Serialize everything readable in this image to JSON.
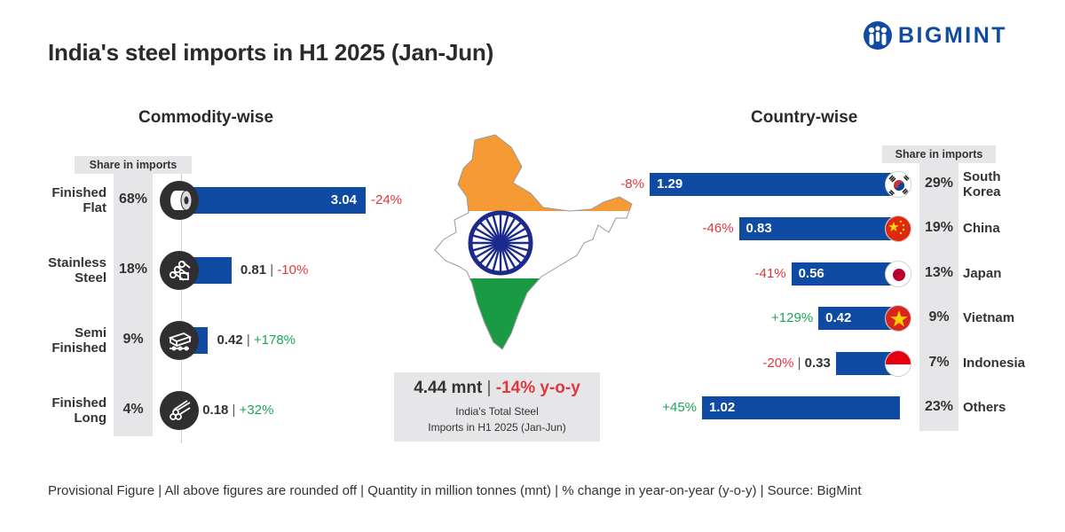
{
  "title": "India's steel imports in H1 2025 (Jan-Jun)",
  "brand": "BIGMINT",
  "colors": {
    "bar": "#0f4aa3",
    "negative": "#e0383e",
    "positive": "#1fa35a",
    "panel": "#e6e6e8"
  },
  "commodity": {
    "heading": "Commodity-wise",
    "share_header": "Share in imports",
    "items": [
      {
        "label_line1": "Finished",
        "label_line2": "Flat",
        "share": "68%",
        "value": "3.04",
        "change": "-24%",
        "icon": "steel-coil-icon"
      },
      {
        "label_line1": "Stainless",
        "label_line2": "Steel",
        "share": "18%",
        "value": "0.81",
        "change": "-10%",
        "icon": "stainless-pipes-icon"
      },
      {
        "label_line1": "Semi",
        "label_line2": "Finished",
        "share": "9%",
        "value": "0.42",
        "change": "+178%",
        "icon": "semi-finished-bar-icon"
      },
      {
        "label_line1": "Finished",
        "label_line2": "Long",
        "share": "4%",
        "value": "0.18",
        "change": "+32%",
        "icon": "long-rods-icon"
      }
    ]
  },
  "country": {
    "heading": "Country-wise",
    "share_header": "Share in imports",
    "items": [
      {
        "label_line1": "South",
        "label_line2": "Korea",
        "share": "29%",
        "value": "1.29",
        "change": "-8%",
        "icon": "south-korea-flag-icon"
      },
      {
        "label_line1": "China",
        "label_line2": "",
        "share": "19%",
        "value": "0.83",
        "change": "-46%",
        "icon": "china-flag-icon"
      },
      {
        "label_line1": "Japan",
        "label_line2": "",
        "share": "13%",
        "value": "0.56",
        "change": "-41%",
        "icon": "japan-flag-icon"
      },
      {
        "label_line1": "Vietnam",
        "label_line2": "",
        "share": "9%",
        "value": "0.42",
        "change": "+129%",
        "icon": "vietnam-flag-icon"
      },
      {
        "label_line1": "Indonesia",
        "label_line2": "",
        "share": "7%",
        "value": "0.33",
        "change": "-20%",
        "icon": "indonesia-flag-icon"
      },
      {
        "label_line1": "Others",
        "label_line2": "",
        "share": "23%",
        "value": "1.02",
        "change": "+45%",
        "icon": ""
      }
    ]
  },
  "total": {
    "value": "4.44 mnt",
    "change": "-14% y-o-y",
    "caption_line1": "India's Total Steel",
    "caption_line2": "Imports in H1 2025 (Jan-Jun)"
  },
  "footer": "Provisional Figure | All above figures are rounded off | Quantity in million tonnes (mnt) | % change in year-on-year (y-o-y) | Source: BigMint",
  "chart_data": [
    {
      "type": "bar",
      "title": "Commodity-wise",
      "unit": "mnt",
      "categories": [
        "Finished Flat",
        "Stainless Steel",
        "Semi Finished",
        "Finished Long"
      ],
      "values": [
        3.04,
        0.81,
        0.42,
        0.18
      ],
      "share_pct": [
        68,
        18,
        9,
        4
      ],
      "yoy_change_pct": [
        -24,
        -10,
        178,
        32
      ]
    },
    {
      "type": "bar",
      "title": "Country-wise",
      "unit": "mnt",
      "categories": [
        "South Korea",
        "China",
        "Japan",
        "Vietnam",
        "Indonesia",
        "Others"
      ],
      "values": [
        1.29,
        0.83,
        0.56,
        0.42,
        0.33,
        1.02
      ],
      "share_pct": [
        29,
        19,
        13,
        9,
        7,
        23
      ],
      "yoy_change_pct": [
        -8,
        -46,
        -41,
        129,
        -20,
        45
      ]
    }
  ]
}
